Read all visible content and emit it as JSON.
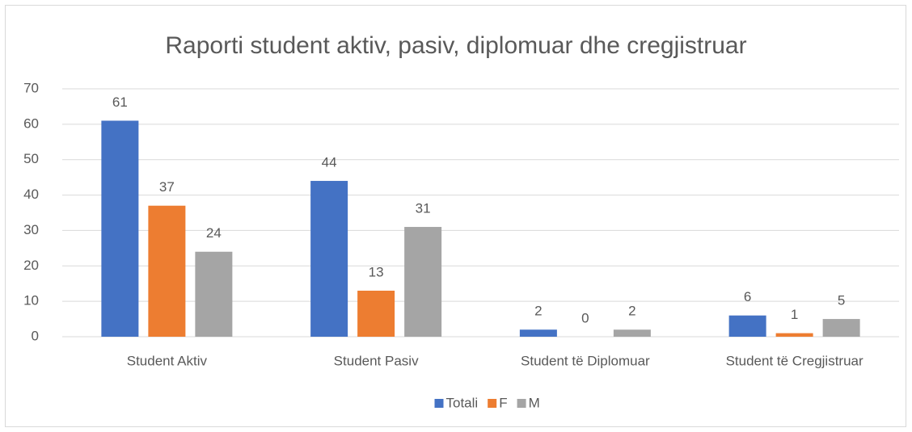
{
  "chart_data": {
    "type": "bar",
    "title": "Raporti student aktiv, pasiv, diplomuar dhe cregjistruar",
    "categories": [
      "Student Aktiv",
      "Student Pasiv",
      "Student të Diplomuar",
      "Student të Cregjistruar"
    ],
    "series": [
      {
        "name": "Totali",
        "color": "#4472c4",
        "values": [
          61,
          44,
          2,
          6
        ]
      },
      {
        "name": "F",
        "color": "#ed7d31",
        "values": [
          37,
          13,
          0,
          1
        ]
      },
      {
        "name": "M",
        "color": "#a5a5a5",
        "values": [
          24,
          31,
          2,
          5
        ]
      }
    ],
    "ylim": [
      0,
      70
    ],
    "yticks": [
      0,
      10,
      20,
      30,
      40,
      50,
      60,
      70
    ],
    "grid": true,
    "legend": "bottom"
  }
}
